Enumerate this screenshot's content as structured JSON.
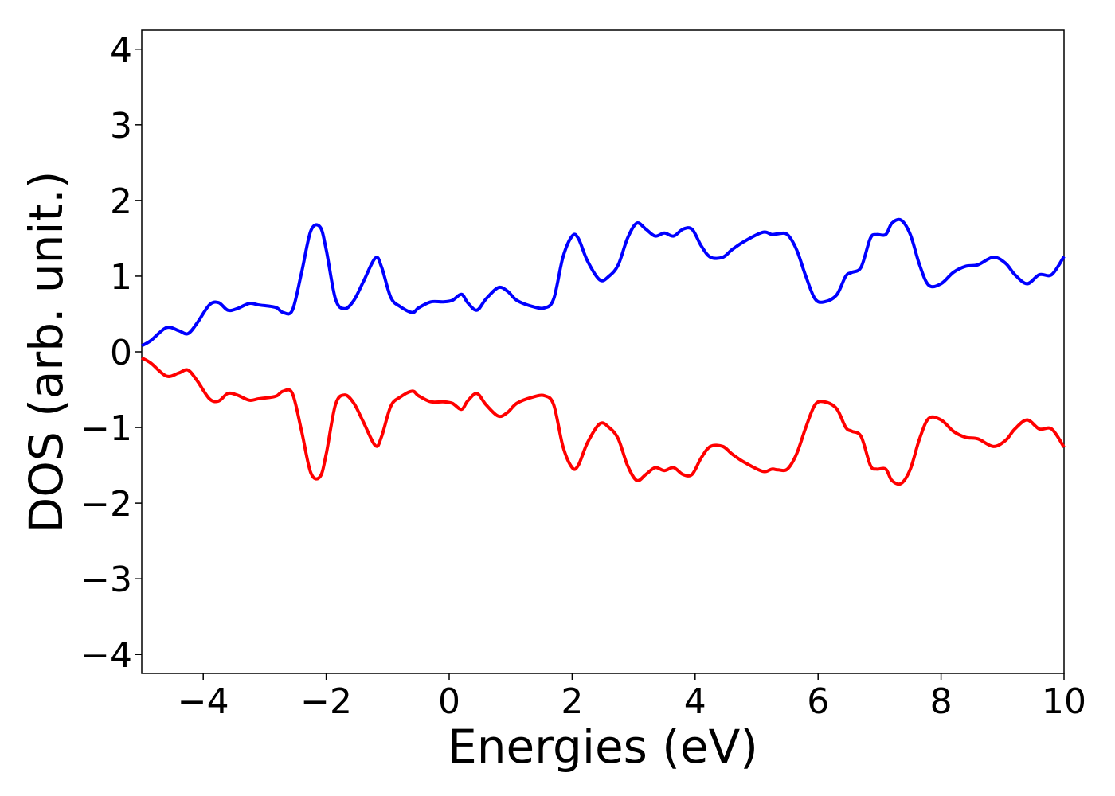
{
  "chart_data": {
    "type": "line",
    "title": "",
    "xlabel": "Energies (eV)",
    "ylabel": "DOS (arb. unit.)",
    "xlim": [
      -5,
      10
    ],
    "ylim": [
      -4.25,
      4.25
    ],
    "xticks": [
      -4,
      -2,
      0,
      2,
      4,
      6,
      8,
      10
    ],
    "xtick_labels": [
      "−4",
      "−2",
      "0",
      "2",
      "4",
      "6",
      "8",
      "10"
    ],
    "yticks": [
      -4,
      -3,
      -2,
      -1,
      0,
      1,
      2,
      3,
      4
    ],
    "ytick_labels": [
      "−4",
      "−3",
      "−2",
      "−1",
      "0",
      "1",
      "2",
      "3",
      "4"
    ],
    "grid": false,
    "series": [
      {
        "color": "#0000ff",
        "x": [
          -5.0,
          -4.85,
          -4.6,
          -4.4,
          -4.25,
          -4.1,
          -3.9,
          -3.75,
          -3.6,
          -3.45,
          -3.25,
          -3.1,
          -2.9,
          -2.8,
          -2.7,
          -2.55,
          -2.4,
          -2.25,
          -2.1,
          -2.0,
          -1.85,
          -1.7,
          -1.55,
          -1.4,
          -1.2,
          -1.1,
          -0.95,
          -0.8,
          -0.6,
          -0.5,
          -0.3,
          -0.1,
          0.05,
          0.2,
          0.3,
          0.45,
          0.6,
          0.8,
          0.95,
          1.1,
          1.35,
          1.55,
          1.7,
          1.85,
          2.0,
          2.1,
          2.25,
          2.45,
          2.6,
          2.75,
          2.9,
          3.05,
          3.2,
          3.35,
          3.5,
          3.65,
          3.8,
          3.95,
          4.1,
          4.25,
          4.45,
          4.6,
          4.8,
          5.1,
          5.25,
          5.35,
          5.5,
          5.65,
          5.8,
          5.95,
          6.1,
          6.3,
          6.45,
          6.55,
          6.7,
          6.85,
          6.95,
          7.1,
          7.2,
          7.35,
          7.5,
          7.65,
          7.8,
          8.0,
          8.2,
          8.4,
          8.6,
          8.85,
          9.05,
          9.2,
          9.4,
          9.6,
          9.8,
          10.0
        ],
        "y": [
          0.08,
          0.15,
          0.32,
          0.28,
          0.24,
          0.38,
          0.62,
          0.65,
          0.55,
          0.57,
          0.64,
          0.62,
          0.6,
          0.58,
          0.52,
          0.55,
          1.05,
          1.6,
          1.65,
          1.35,
          0.7,
          0.57,
          0.68,
          0.92,
          1.24,
          1.12,
          0.72,
          0.6,
          0.52,
          0.58,
          0.66,
          0.66,
          0.68,
          0.76,
          0.65,
          0.55,
          0.7,
          0.85,
          0.8,
          0.68,
          0.6,
          0.58,
          0.7,
          1.25,
          1.53,
          1.5,
          1.2,
          0.95,
          1.0,
          1.15,
          1.5,
          1.7,
          1.62,
          1.53,
          1.57,
          1.53,
          1.62,
          1.62,
          1.4,
          1.25,
          1.25,
          1.35,
          1.46,
          1.58,
          1.55,
          1.56,
          1.55,
          1.35,
          1.0,
          0.7,
          0.66,
          0.75,
          1.0,
          1.05,
          1.12,
          1.5,
          1.55,
          1.55,
          1.7,
          1.74,
          1.55,
          1.15,
          0.88,
          0.9,
          1.05,
          1.13,
          1.15,
          1.25,
          1.17,
          1.02,
          0.9,
          1.02,
          1.02,
          1.26
        ]
      },
      {
        "color": "#ff0000",
        "x": [
          -5.0,
          -4.85,
          -4.6,
          -4.4,
          -4.25,
          -4.1,
          -3.9,
          -3.75,
          -3.6,
          -3.45,
          -3.25,
          -3.1,
          -2.9,
          -2.8,
          -2.7,
          -2.55,
          -2.4,
          -2.25,
          -2.1,
          -2.0,
          -1.85,
          -1.7,
          -1.55,
          -1.4,
          -1.2,
          -1.1,
          -0.95,
          -0.8,
          -0.6,
          -0.5,
          -0.3,
          -0.1,
          0.05,
          0.2,
          0.3,
          0.45,
          0.6,
          0.8,
          0.95,
          1.1,
          1.35,
          1.55,
          1.7,
          1.85,
          2.0,
          2.1,
          2.25,
          2.45,
          2.6,
          2.75,
          2.9,
          3.05,
          3.2,
          3.35,
          3.5,
          3.65,
          3.8,
          3.95,
          4.1,
          4.25,
          4.45,
          4.6,
          4.8,
          5.1,
          5.25,
          5.35,
          5.5,
          5.65,
          5.8,
          5.95,
          6.1,
          6.3,
          6.45,
          6.55,
          6.7,
          6.85,
          6.95,
          7.1,
          7.2,
          7.35,
          7.5,
          7.65,
          7.8,
          8.0,
          8.2,
          8.4,
          8.6,
          8.85,
          9.05,
          9.2,
          9.4,
          9.6,
          9.8,
          10.0
        ],
        "y": [
          -0.08,
          -0.15,
          -0.32,
          -0.28,
          -0.24,
          -0.38,
          -0.62,
          -0.65,
          -0.55,
          -0.57,
          -0.64,
          -0.62,
          -0.6,
          -0.58,
          -0.52,
          -0.55,
          -1.05,
          -1.6,
          -1.65,
          -1.35,
          -0.7,
          -0.57,
          -0.68,
          -0.92,
          -1.24,
          -1.12,
          -0.72,
          -0.6,
          -0.52,
          -0.58,
          -0.66,
          -0.66,
          -0.68,
          -0.76,
          -0.65,
          -0.55,
          -0.7,
          -0.85,
          -0.8,
          -0.68,
          -0.6,
          -0.58,
          -0.7,
          -1.25,
          -1.53,
          -1.5,
          -1.2,
          -0.95,
          -1.0,
          -1.15,
          -1.5,
          -1.7,
          -1.62,
          -1.53,
          -1.57,
          -1.53,
          -1.62,
          -1.62,
          -1.4,
          -1.25,
          -1.25,
          -1.35,
          -1.46,
          -1.58,
          -1.55,
          -1.56,
          -1.55,
          -1.35,
          -1.0,
          -0.7,
          -0.66,
          -0.75,
          -1.0,
          -1.05,
          -1.12,
          -1.5,
          -1.55,
          -1.55,
          -1.7,
          -1.74,
          -1.55,
          -1.15,
          -0.88,
          -0.9,
          -1.05,
          -1.13,
          -1.15,
          -1.25,
          -1.17,
          -1.02,
          -0.9,
          -1.02,
          -1.02,
          -1.26
        ]
      }
    ]
  }
}
